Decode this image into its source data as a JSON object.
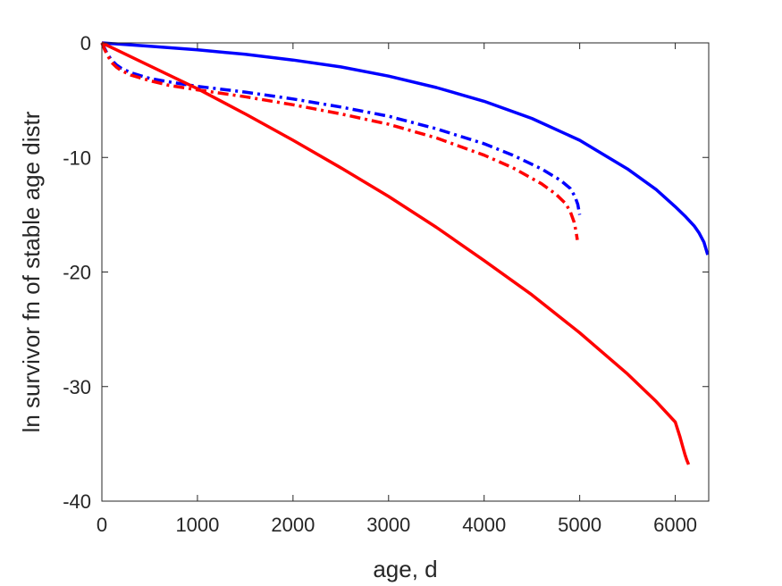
{
  "chart_data": {
    "type": "line",
    "title": "",
    "xlabel": "age, d",
    "ylabel": "ln survivor fn of stable age distr",
    "xlim": [
      0,
      6350
    ],
    "ylim": [
      -40,
      0
    ],
    "xticks": [
      0,
      1000,
      2000,
      3000,
      4000,
      5000,
      6000
    ],
    "yticks": [
      0,
      -10,
      -20,
      -30,
      -40
    ],
    "xtick_labels": [
      "0",
      "1000",
      "2000",
      "3000",
      "4000",
      "5000",
      "6000"
    ],
    "ytick_labels": [
      "0",
      "-10",
      "-20",
      "-30",
      "-40"
    ],
    "grid": false,
    "box": true,
    "series": [
      {
        "color": "#0000ff",
        "style": "solid",
        "x": [
          0,
          500,
          1000,
          1500,
          2000,
          2500,
          3000,
          3500,
          4000,
          4500,
          5000,
          5500,
          5800,
          6000,
          6100,
          6200,
          6250,
          6300,
          6340
        ],
        "y": [
          0,
          -0.3,
          -0.6,
          -1.0,
          -1.5,
          -2.1,
          -2.9,
          -3.9,
          -5.1,
          -6.6,
          -8.5,
          -11.0,
          -12.8,
          -14.3,
          -15.1,
          -16.0,
          -16.6,
          -17.4,
          -18.5
        ]
      },
      {
        "color": "#0000ff",
        "style": "dashdot",
        "x": [
          0,
          30,
          60,
          100,
          150,
          200,
          300,
          500,
          700,
          1000,
          1500,
          2000,
          2500,
          3000,
          3500,
          4000,
          4300,
          4600,
          4800,
          4900,
          4950,
          4980,
          5000
        ],
        "y": [
          0,
          -0.5,
          -1.0,
          -1.5,
          -1.9,
          -2.2,
          -2.6,
          -3.1,
          -3.4,
          -3.8,
          -4.3,
          -4.9,
          -5.6,
          -6.4,
          -7.5,
          -8.8,
          -9.8,
          -11.0,
          -12.0,
          -12.7,
          -13.4,
          -14.1,
          -15.0
        ]
      },
      {
        "color": "#ff0000",
        "style": "dashdot",
        "x": [
          0,
          30,
          60,
          100,
          150,
          200,
          300,
          500,
          700,
          1000,
          1500,
          2000,
          2500,
          3000,
          3500,
          4000,
          4300,
          4600,
          4750,
          4850,
          4900,
          4940,
          4960,
          4975
        ],
        "y": [
          0,
          -0.6,
          -1.1,
          -1.7,
          -2.1,
          -2.4,
          -2.8,
          -3.3,
          -3.7,
          -4.1,
          -4.7,
          -5.4,
          -6.2,
          -7.1,
          -8.3,
          -9.8,
          -10.9,
          -12.3,
          -13.2,
          -14.0,
          -14.7,
          -15.6,
          -16.4,
          -17.2
        ]
      },
      {
        "color": "#ff0000",
        "style": "solid",
        "x": [
          0,
          500,
          1000,
          1500,
          2000,
          2500,
          3000,
          3500,
          4000,
          4500,
          5000,
          5500,
          5800,
          6000,
          6050,
          6080,
          6100,
          6120,
          6140
        ],
        "y": [
          0,
          -2.0,
          -4.0,
          -6.2,
          -8.5,
          -10.9,
          -13.4,
          -16.1,
          -19.0,
          -22.0,
          -25.3,
          -28.9,
          -31.3,
          -33.1,
          -34.4,
          -35.3,
          -35.9,
          -36.4,
          -36.8
        ]
      }
    ]
  }
}
